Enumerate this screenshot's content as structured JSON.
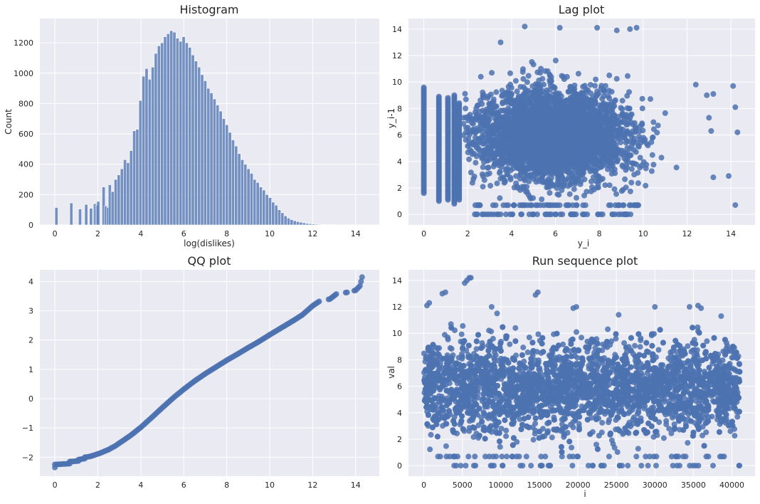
{
  "colors": {
    "series": "#4c72b0",
    "panel_bg": "#eaeaf2",
    "grid": "#ffffff",
    "text": "#262626"
  },
  "chart_data": [
    {
      "id": "histogram",
      "type": "bar",
      "title": "Histogram",
      "xlabel": "log(dislikes)",
      "ylabel": "Count",
      "xlim": [
        -0.7,
        15.1
      ],
      "ylim": [
        0,
        1360
      ],
      "xticks": [
        0,
        2,
        4,
        6,
        8,
        10,
        12,
        14
      ],
      "yticks": [
        0,
        200,
        400,
        600,
        800,
        1000,
        1200
      ],
      "grid": true,
      "bin_width": 0.1437,
      "bin_starts": [
        0.0,
        0.1437,
        0.2874,
        0.4311,
        0.5748,
        0.6931,
        0.8614,
        1.0051,
        1.0986,
        1.2925,
        1.3863,
        1.5798,
        1.6094,
        1.7918,
        1.8877,
        1.9459,
        2.0794,
        2.1972,
        2.3026,
        2.3979,
        2.4849,
        2.6149,
        2.7586,
        2.9023,
        3.046,
        3.1897,
        3.3334,
        3.4771,
        3.6208,
        3.7645,
        3.9082,
        4.0519,
        4.1956,
        4.3393,
        4.483,
        4.6267,
        4.7704,
        4.9141,
        5.0578,
        5.2015,
        5.3452,
        5.4889,
        5.6326,
        5.7763,
        5.92,
        6.0637,
        6.2074,
        6.3511,
        6.4948,
        6.6385,
        6.7822,
        6.9259,
        7.0696,
        7.2133,
        7.357,
        7.5007,
        7.6444,
        7.7881,
        7.9318,
        8.0755,
        8.2192,
        8.3629,
        8.5066,
        8.6503,
        8.794,
        8.9377,
        9.0814,
        9.2251,
        9.3688,
        9.5125,
        9.6562,
        9.7999,
        9.9436,
        10.0873,
        10.231,
        10.3747,
        10.5184,
        10.6621,
        10.8058,
        10.9495,
        11.0932,
        11.2369,
        11.3806,
        11.5243,
        11.668,
        11.8117,
        11.9554,
        12.0991,
        12.2428,
        12.3865,
        12.5302,
        12.6739,
        12.8176,
        12.9613,
        13.105,
        13.2487,
        13.3924,
        13.5361,
        13.6798,
        13.8235,
        13.9672,
        14.1109,
        14.2546
      ],
      "values": [
        115,
        0,
        0,
        0,
        0,
        145,
        0,
        0,
        105,
        0,
        135,
        0,
        110,
        140,
        130,
        155,
        0,
        250,
        125,
        115,
        265,
        220,
        300,
        330,
        370,
        430,
        410,
        490,
        620,
        630,
        820,
        980,
        1030,
        960,
        1040,
        1130,
        1180,
        1200,
        1240,
        1260,
        1280,
        1270,
        1230,
        1210,
        1240,
        1200,
        1170,
        1120,
        1080,
        1040,
        990,
        950,
        900,
        870,
        830,
        790,
        750,
        700,
        660,
        610,
        560,
        520,
        470,
        430,
        400,
        370,
        340,
        300,
        280,
        250,
        230,
        200,
        180,
        150,
        130,
        100,
        80,
        60,
        45,
        35,
        28,
        22,
        18,
        14,
        10,
        8,
        6,
        5,
        4,
        3,
        3,
        2,
        2,
        2,
        1,
        1,
        1,
        1,
        0,
        0,
        0,
        1,
        1
      ]
    },
    {
      "id": "lag",
      "type": "scatter",
      "title": "Lag plot",
      "xlabel": "y_i",
      "ylabel": "y_i-1",
      "xlim": [
        -0.7,
        15.1
      ],
      "ylim": [
        -0.8,
        14.8
      ],
      "xticks": [
        0,
        2,
        4,
        6,
        8,
        10,
        12,
        14
      ],
      "yticks": [
        0,
        2,
        4,
        6,
        8,
        10,
        12,
        14
      ],
      "grid": true,
      "outliers": [
        [
          4.6,
          14.2
        ],
        [
          6.2,
          14.1
        ],
        [
          7.9,
          14.1
        ],
        [
          8.8,
          13.9
        ],
        [
          9.4,
          14.0
        ],
        [
          9.7,
          14.1
        ],
        [
          12.4,
          9.8
        ],
        [
          12.9,
          9.0
        ],
        [
          13.2,
          9.1
        ],
        [
          13.0,
          7.3
        ],
        [
          13.1,
          6.3
        ],
        [
          13.2,
          2.8
        ],
        [
          13.9,
          2.9
        ],
        [
          14.1,
          9.7
        ],
        [
          14.2,
          8.1
        ],
        [
          14.3,
          6.2
        ],
        [
          14.2,
          0.7
        ],
        [
          3.1,
          10.7
        ],
        [
          3.5,
          13.0
        ],
        [
          1.9,
          8.0
        ]
      ]
    },
    {
      "id": "qq",
      "type": "scatter",
      "title": "QQ plot",
      "xlabel": "",
      "ylabel": "",
      "xlim": [
        -0.7,
        15.1
      ],
      "ylim": [
        -2.65,
        4.4
      ],
      "xticks": [
        0,
        2,
        4,
        6,
        8,
        10,
        12,
        14
      ],
      "yticks": [
        -2,
        -1,
        0,
        1,
        2,
        3,
        4
      ],
      "grid": true,
      "points": [
        [
          0.0,
          -2.35
        ],
        [
          0.0,
          -2.25
        ],
        [
          0.69,
          -2.22
        ],
        [
          0.69,
          -2.15
        ],
        [
          1.1,
          -2.13
        ],
        [
          1.1,
          -2.08
        ],
        [
          1.39,
          -2.05
        ],
        [
          1.39,
          -2.0
        ],
        [
          1.61,
          -1.98
        ],
        [
          1.79,
          -1.94
        ],
        [
          1.95,
          -1.9
        ],
        [
          2.08,
          -1.87
        ],
        [
          2.3,
          -1.8
        ],
        [
          2.5,
          -1.74
        ],
        [
          2.8,
          -1.62
        ],
        [
          3.0,
          -1.52
        ],
        [
          3.5,
          -1.27
        ],
        [
          4.0,
          -0.98
        ],
        [
          4.5,
          -0.65
        ],
        [
          5.0,
          -0.31
        ],
        [
          5.5,
          0.02
        ],
        [
          6.0,
          0.32
        ],
        [
          6.5,
          0.6
        ],
        [
          7.0,
          0.85
        ],
        [
          7.5,
          1.08
        ],
        [
          8.0,
          1.31
        ],
        [
          8.5,
          1.52
        ],
        [
          9.0,
          1.74
        ],
        [
          9.5,
          1.95
        ],
        [
          10.0,
          2.18
        ],
        [
          10.5,
          2.4
        ],
        [
          11.0,
          2.62
        ],
        [
          11.5,
          2.85
        ],
        [
          12.0,
          3.17
        ],
        [
          12.3,
          3.32
        ],
        [
          12.8,
          3.4
        ],
        [
          13.1,
          3.57
        ],
        [
          13.6,
          3.63
        ],
        [
          14.0,
          3.7
        ],
        [
          14.2,
          3.85
        ],
        [
          14.3,
          4.15
        ]
      ]
    },
    {
      "id": "run",
      "type": "scatter",
      "title": "Run sequence plot",
      "xlabel": "i",
      "ylabel": "val",
      "xlim": [
        -2000,
        43000
      ],
      "ylim": [
        -0.8,
        14.8
      ],
      "xticks": [
        0,
        5000,
        10000,
        15000,
        20000,
        25000,
        30000,
        35000,
        40000
      ],
      "yticks": [
        0,
        2,
        4,
        6,
        8,
        10,
        12,
        14
      ],
      "grid": true,
      "peaks": [
        [
          5300,
          13.8
        ],
        [
          5600,
          14.0
        ],
        [
          5900,
          14.2
        ],
        [
          6100,
          14.2
        ],
        [
          2400,
          13.0
        ],
        [
          2800,
          13.1
        ],
        [
          14500,
          12.9
        ],
        [
          14800,
          13.1
        ],
        [
          19400,
          11.9
        ],
        [
          19800,
          12.0
        ],
        [
          30000,
          12.0
        ],
        [
          34500,
          12.0
        ],
        [
          35600,
          12.1
        ],
        [
          36000,
          11.9
        ],
        [
          400,
          12.1
        ],
        [
          700,
          12.3
        ],
        [
          8800,
          12.0
        ],
        [
          9500,
          11.5
        ],
        [
          25300,
          11.4
        ],
        [
          38600,
          11.3
        ]
      ]
    }
  ]
}
